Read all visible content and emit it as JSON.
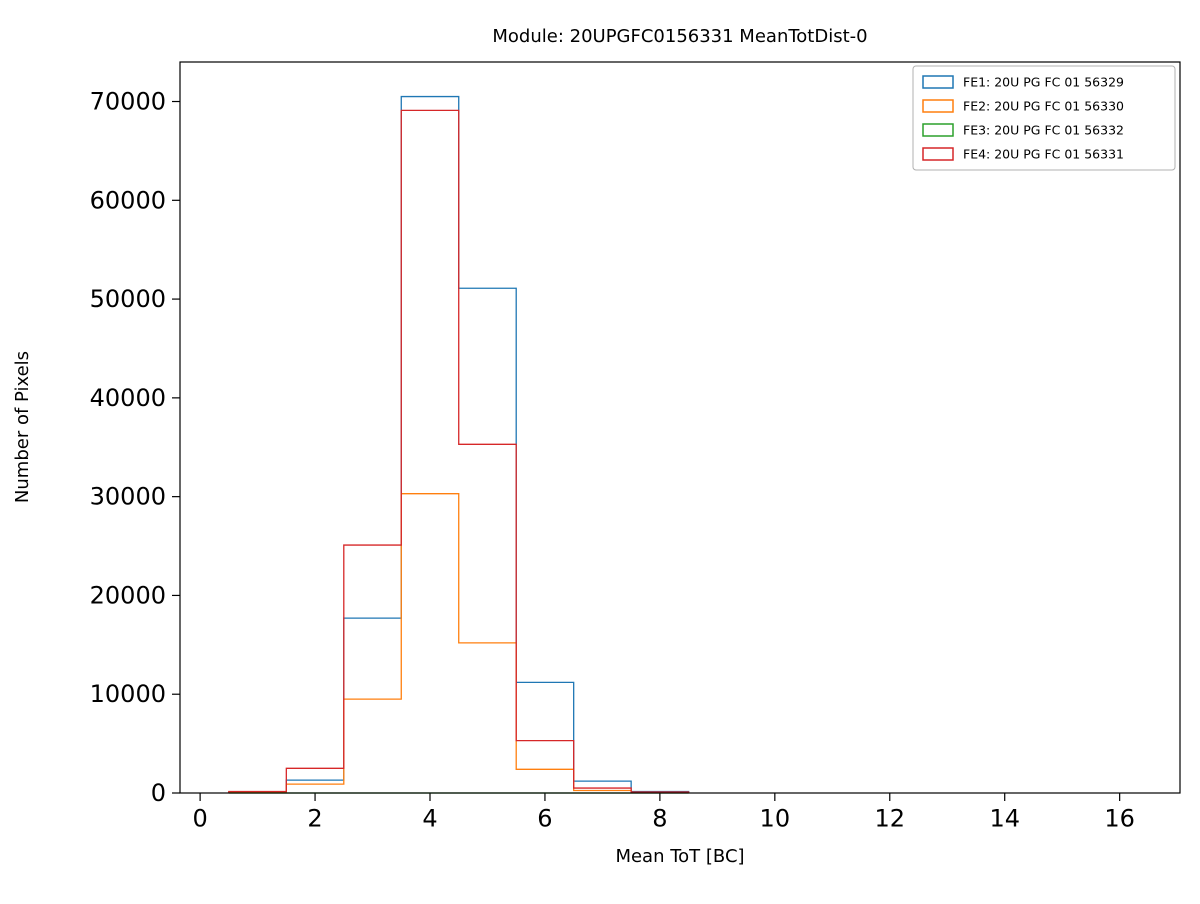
{
  "chart_data": {
    "type": "histogram-step",
    "title": "Module: 20UPGFC0156331 MeanTotDist-0",
    "xlabel": "Mean ToT [BC]",
    "ylabel": "Number of Pixels",
    "xlim": [
      -0.35,
      17.05
    ],
    "ylim": [
      0,
      74000
    ],
    "x_ticks": [
      0,
      2,
      4,
      6,
      8,
      10,
      12,
      14,
      16
    ],
    "y_ticks": [
      0,
      10000,
      20000,
      30000,
      40000,
      50000,
      60000,
      70000
    ],
    "bin_edges": [
      0.5,
      1.5,
      2.5,
      3.5,
      4.5,
      5.5,
      6.5,
      7.5,
      8.5
    ],
    "series": [
      {
        "name": "FE1: 20U PG FC 01 56329",
        "color": "#1f77b4",
        "values": [
          100,
          1300,
          17700,
          70500,
          51100,
          11200,
          1200,
          150
        ]
      },
      {
        "name": "FE2: 20U PG FC 01 56330",
        "color": "#ff7f0e",
        "values": [
          80,
          900,
          9500,
          30300,
          15200,
          2400,
          250,
          60
        ]
      },
      {
        "name": "FE3: 20U PG FC 01 56332",
        "color": "#2ca02c",
        "values": [
          0,
          0,
          0,
          0,
          0,
          0,
          0,
          0
        ]
      },
      {
        "name": "FE4: 20U PG FC 01 56331",
        "color": "#d62728",
        "values": [
          150,
          2500,
          25100,
          69100,
          35300,
          5300,
          500,
          100
        ]
      }
    ],
    "legend_position": "upper right",
    "grid": false,
    "background_color": "#ffffff",
    "axes_color": "#000000",
    "legend_border_color": "#b0b0b0"
  }
}
